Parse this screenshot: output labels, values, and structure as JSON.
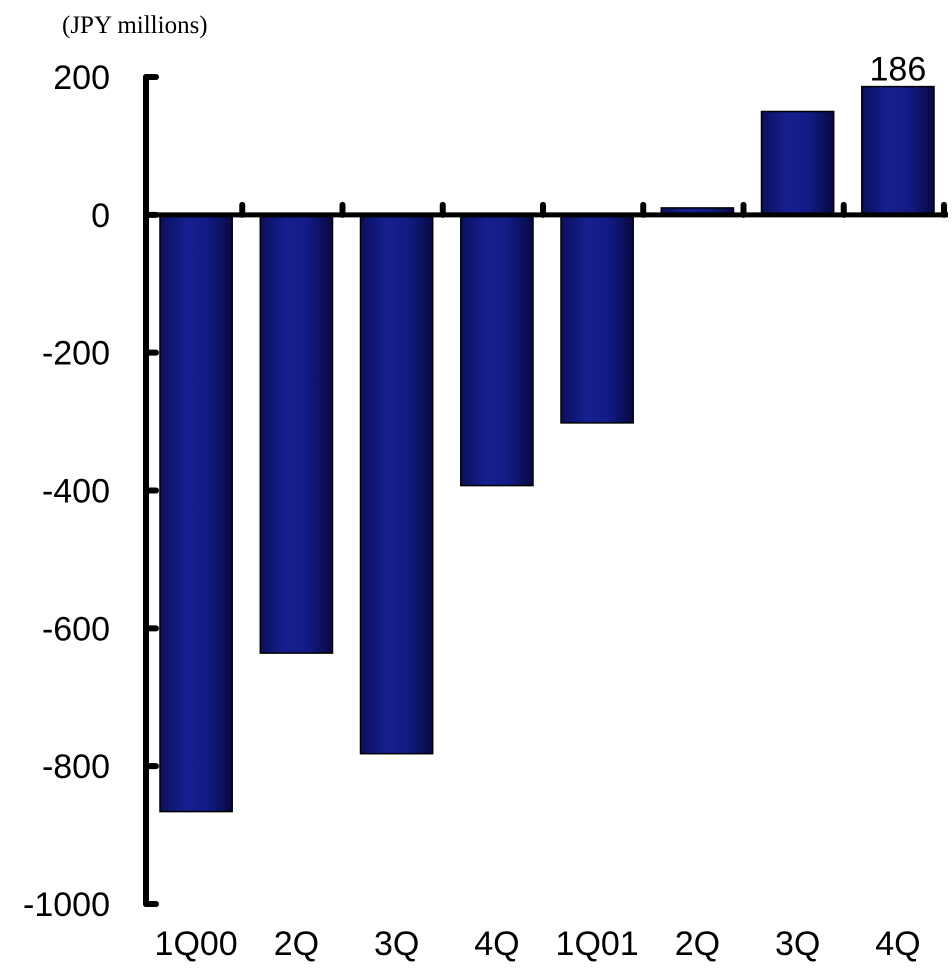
{
  "chart_data": {
    "type": "bar",
    "unit_label": "(JPY millions)",
    "categories": [
      "1Q00",
      "2Q",
      "3Q",
      "4Q",
      "1Q01",
      "2Q",
      "3Q",
      "4Q"
    ],
    "values": [
      -866,
      -636,
      -782,
      -393,
      -302,
      10,
      150,
      186
    ],
    "data_labels": [
      {
        "index": 7,
        "text": "186"
      }
    ],
    "ylim": [
      -1000,
      200
    ],
    "yticks": [
      200,
      0,
      -200,
      -400,
      -600,
      -800,
      -1000
    ],
    "ytick_labels": [
      "200",
      "0",
      "-200",
      "-400",
      "-600",
      "-800",
      "-1000"
    ],
    "grid": false,
    "legend": "none",
    "colors": {
      "bar_fill": "#0A0F73",
      "bar_edge": "#000000",
      "axis": "#000000",
      "text": "#000000"
    }
  }
}
